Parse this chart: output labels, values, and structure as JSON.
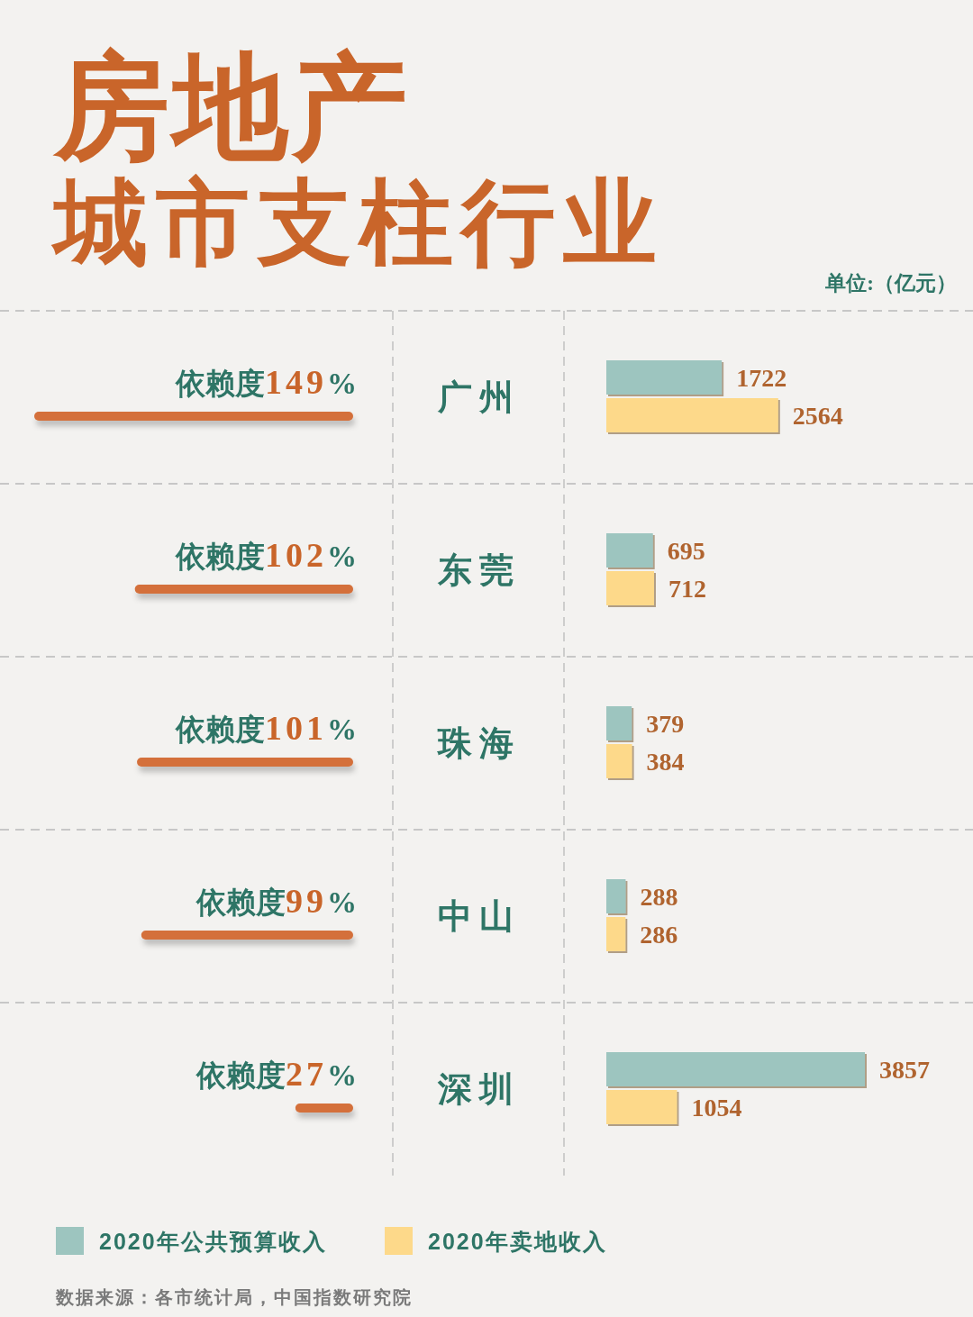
{
  "chart_data": [
    {
      "type": "bar",
      "orientation": "horizontal",
      "title": "房地产",
      "subtitle": "城市支柱行业",
      "categories": [
        "广州",
        "东莞",
        "珠海",
        "中山",
        "深圳"
      ],
      "values": [
        149,
        102,
        101,
        99,
        27
      ],
      "value_labels": [
        "依赖度149%",
        "依赖度102%",
        "依赖度101%",
        "依赖度99%",
        "依赖度27%"
      ],
      "color": "#d4703a",
      "tick_labels": false
    },
    {
      "type": "bar",
      "orientation": "horizontal",
      "categories": [
        "广州",
        "东莞",
        "珠海",
        "中山",
        "深圳"
      ],
      "series": [
        {
          "name": "2020年公共预算收入",
          "color": "#9dc5bf",
          "values": [
            1722,
            695,
            379,
            288,
            3857
          ]
        },
        {
          "name": "2020年卖地收入",
          "color": "#fdd98a",
          "values": [
            2564,
            712,
            384,
            286,
            1054
          ]
        }
      ],
      "data_labels": true,
      "legend": "bottom",
      "annotations": [
        "单位:（亿元）",
        "数据来源：各市统计局，中国指数研究院"
      ]
    }
  ]
}
